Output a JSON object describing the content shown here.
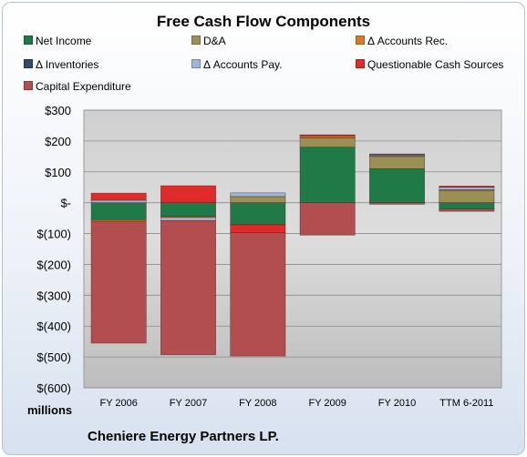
{
  "title": "Free Cash Flow Components",
  "units_label": "millions",
  "company": "Cheniere Energy Partners LP.",
  "chart_data": {
    "type": "bar",
    "stacked": true,
    "title": "Free Cash Flow Components",
    "ylabel": "millions",
    "ylim": [
      -600,
      300
    ],
    "yticks": [
      300,
      200,
      100,
      0,
      -100,
      -200,
      -300,
      -400,
      -500,
      -600
    ],
    "ytick_labels": [
      "$300",
      "$200",
      "$100",
      "$-",
      "$(100)",
      "$(200)",
      "$(300)",
      "$(400)",
      "$(500)",
      "$(600)"
    ],
    "categories": [
      "FY 2006",
      "FY 2007",
      "FY 2008",
      "FY 2009",
      "FY 2010",
      "TTM 6-2011"
    ],
    "legend": "top",
    "grid": true,
    "series": [
      {
        "name": "Net Income",
        "color": "#1f7a47",
        "values": [
          -55,
          -45,
          -70,
          180,
          110,
          -20
        ]
      },
      {
        "name": "D&A",
        "color": "#9c8f55",
        "values": [
          0,
          0,
          20,
          30,
          40,
          40
        ]
      },
      {
        "name": "Δ Accounts Rec.",
        "color": "#d97b2b",
        "values": [
          -5,
          -3,
          -2,
          5,
          3,
          2
        ]
      },
      {
        "name": "Δ Inventories",
        "color": "#2e4b6b",
        "values": [
          0,
          0,
          0,
          0,
          0,
          0
        ]
      },
      {
        "name": "Δ Accounts Pay.",
        "color": "#9fb5d6",
        "values": [
          8,
          -10,
          12,
          3,
          3,
          8
        ]
      },
      {
        "name": "Questionable Cash Sources",
        "color": "#e02b2b",
        "values": [
          23,
          55,
          -25,
          2,
          2,
          4
        ]
      },
      {
        "name": "Capital Expenditure",
        "color": "#b24e50",
        "values": [
          -395,
          -435,
          -400,
          -105,
          -5,
          -8
        ]
      }
    ]
  }
}
